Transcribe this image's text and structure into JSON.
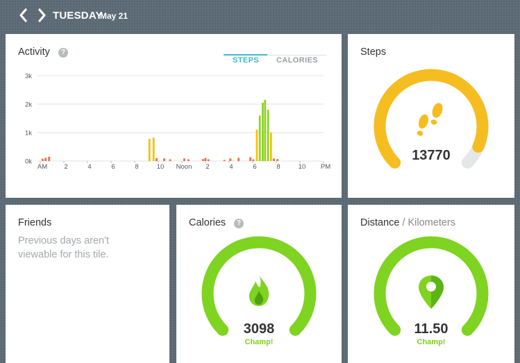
{
  "header": {
    "prev_icon": "chevron-left-icon",
    "next_icon": "chevron-right-icon",
    "day": "TUESDAY",
    "month_day": "May 21"
  },
  "activity": {
    "title": "Activity",
    "help": "?",
    "tabs": [
      {
        "label": "STEPS",
        "active": true
      },
      {
        "label": "CALORIES",
        "active": false
      }
    ]
  },
  "chart_data": {
    "type": "bar",
    "y_ticks": [
      "0k",
      "1k",
      "2k",
      "3k"
    ],
    "ylim": [
      0,
      3000
    ],
    "x_ticks": [
      "AM",
      "2",
      "4",
      "6",
      "8",
      "10",
      "Noon",
      "2",
      "4",
      "6",
      "8",
      "10",
      "PM"
    ],
    "xlim_hours": [
      0,
      24
    ],
    "grid": true,
    "colors": {
      "low": "#f26c3a",
      "mid": "#f5c200",
      "high": "#8ed321"
    },
    "bars": [
      {
        "x": 0.2,
        "y": 80
      },
      {
        "x": 0.45,
        "y": 110
      },
      {
        "x": 0.75,
        "y": 150
      },
      {
        "x": 9.25,
        "y": 780
      },
      {
        "x": 9.6,
        "y": 820
      },
      {
        "x": 9.85,
        "y": 100
      },
      {
        "x": 10.5,
        "y": 90
      },
      {
        "x": 11.0,
        "y": 60
      },
      {
        "x": 12.2,
        "y": 90
      },
      {
        "x": 12.55,
        "y": 60
      },
      {
        "x": 13.8,
        "y": 70
      },
      {
        "x": 14.0,
        "y": 110
      },
      {
        "x": 14.25,
        "y": 60
      },
      {
        "x": 15.6,
        "y": 40
      },
      {
        "x": 16.1,
        "y": 90
      },
      {
        "x": 16.8,
        "y": 110
      },
      {
        "x": 17.8,
        "y": 130
      },
      {
        "x": 18.05,
        "y": 60
      },
      {
        "x": 18.35,
        "y": 1100
      },
      {
        "x": 18.6,
        "y": 1600
      },
      {
        "x": 18.85,
        "y": 2050
      },
      {
        "x": 19.05,
        "y": 2150
      },
      {
        "x": 19.3,
        "y": 1800
      },
      {
        "x": 19.55,
        "y": 1000
      },
      {
        "x": 19.8,
        "y": 90
      },
      {
        "x": 20.1,
        "y": 70
      }
    ]
  },
  "steps": {
    "title": "Steps",
    "value": "13770",
    "icon": "footprints-icon",
    "progress": 0.92,
    "color": "#f5bd1f"
  },
  "friends": {
    "title": "Friends",
    "message": "Previous days aren't viewable for this tile."
  },
  "calories": {
    "title": "Calories",
    "help": "?",
    "value": "3098",
    "status": "Champ!",
    "icon": "flame-icon",
    "progress": 1.0,
    "color": "#7fd321"
  },
  "distance": {
    "title": "Distance",
    "unit_sep": " / Kilometers",
    "value": "11.50",
    "status": "Champ!",
    "icon": "map-pin-icon",
    "progress": 1.0,
    "color": "#7fd321"
  }
}
